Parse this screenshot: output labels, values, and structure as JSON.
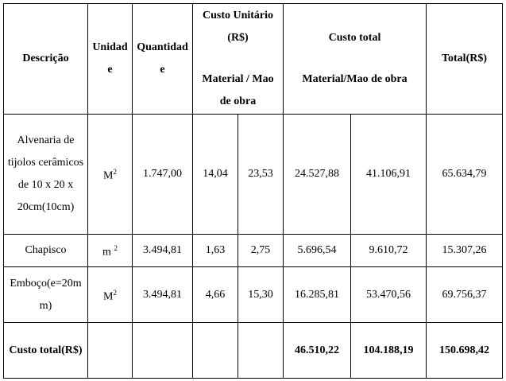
{
  "header": {
    "description": "Descrição",
    "unit": "Unidade",
    "quantity": "Quantidade",
    "unit_cost": {
      "title": "Custo Unitário (R$)",
      "subtitle": "Material / Mao de obra"
    },
    "total_cost": {
      "title": "Custo total",
      "subtitle": "Material/Mao de obra"
    },
    "total": "Total(R$)"
  },
  "rows": [
    {
      "description": "Alvenaria de tijolos cerâmicos de 10 x 20 x 20cm(10cm)",
      "unit": {
        "base": "M",
        "sup": "2"
      },
      "quantity": "1.747,00",
      "unit_material": "14,04",
      "unit_labor": "23,53",
      "total_material": "24.527,88",
      "total_labor": "41.106,91",
      "total": "65.634,79"
    },
    {
      "description": "Chapisco",
      "unit": {
        "base": "m ",
        "sup": "2"
      },
      "quantity": "3.494,81",
      "unit_material": "1,63",
      "unit_labor": "2,75",
      "total_material": "5.696,54",
      "total_labor": "9.610,72",
      "total": "15.307,26"
    },
    {
      "description": "Emboço(e=20mm)",
      "unit": {
        "base": "M",
        "sup": "2"
      },
      "quantity": "3.494,81",
      "unit_material": "4,66",
      "unit_labor": "15,30",
      "total_material": "16.285,81",
      "total_labor": "53.470,56",
      "total": "69.756,37"
    }
  ],
  "footer": {
    "label": "Custo total(R$)",
    "total_material": "46.510,22",
    "total_labor": "104.188,19",
    "total": "150.698,42"
  }
}
